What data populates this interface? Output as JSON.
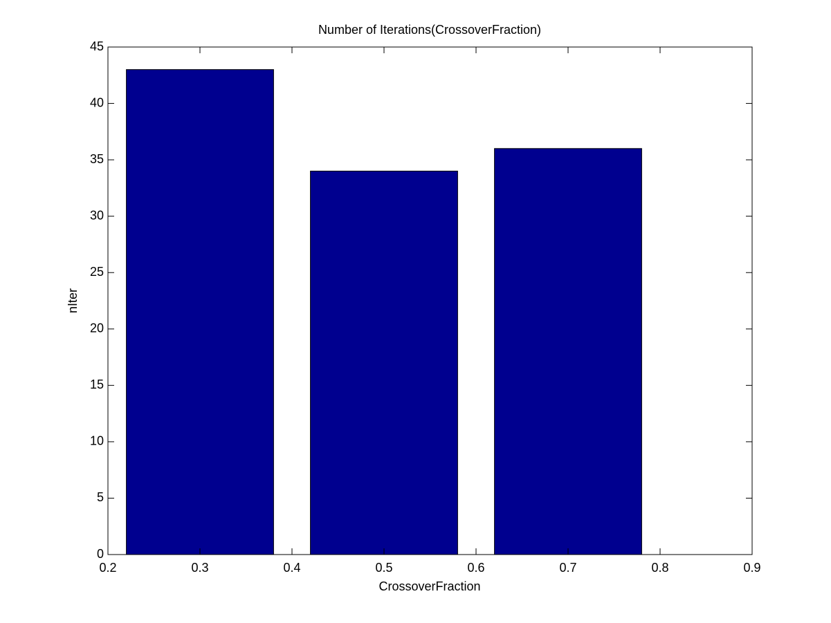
{
  "chart_data": {
    "type": "bar",
    "title": "Number of Iterations(CrossoverFraction)",
    "x_label": "CrossoverFraction",
    "y_label": "nIter",
    "x": [
      0.3,
      0.5,
      0.7
    ],
    "values": [
      43,
      34,
      36
    ],
    "color": "#00008f",
    "xlim": [
      0.2,
      0.9
    ],
    "xticks": [
      0.2,
      0.3,
      0.4,
      0.5,
      0.6,
      0.7,
      0.8,
      0.9
    ],
    "ylim": [
      0,
      45
    ],
    "yticks": [
      0,
      5,
      10,
      15,
      20,
      25,
      30,
      35,
      40,
      45
    ]
  }
}
